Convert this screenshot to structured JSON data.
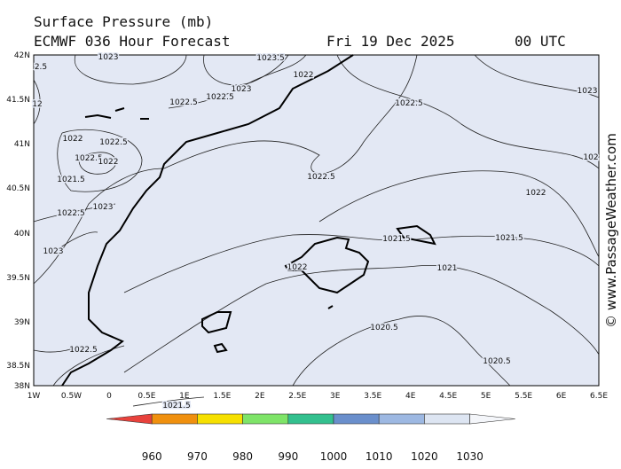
{
  "header": {
    "title": "Surface Pressure (mb)",
    "model": "ECMWF 036 Hour Forecast",
    "date": "Fri 19 Dec 2025",
    "time": "00 UTC"
  },
  "map": {
    "lat_labels": [
      "42N",
      "41.5N",
      "41N",
      "40.5N",
      "40N",
      "39.5N",
      "39N",
      "38.5N",
      "38N"
    ],
    "lon_labels": [
      "1W",
      "0.5W",
      "0",
      "0.5E",
      "1E",
      "1.5E",
      "2E",
      "2.5E",
      "3E",
      "3.5E",
      "4E",
      "4.5E",
      "5E",
      "5.5E",
      "6E",
      "6.5E"
    ],
    "contour_labels": [
      "1023",
      "1023.5",
      "1022",
      "1023",
      "1022.5",
      "1022.5",
      "1022.5",
      "1023",
      "1022",
      "1022.5",
      "1022.5",
      "1022",
      "1021.5",
      "1022.5",
      "1022",
      "102",
      "1023",
      "1022.5",
      "1023",
      "1021.5",
      "1021.5",
      "1022",
      "1021",
      "1020.5",
      "1022.5",
      "1020.5",
      "1021.5",
      "2.5",
      "12"
    ],
    "background": "#e3e8f4"
  },
  "legend": {
    "levels": [
      960,
      970,
      980,
      990,
      1000,
      1010,
      1020,
      1030
    ],
    "colors": [
      "#e8423c",
      "#f0900e",
      "#f6e000",
      "#7ee468",
      "#33c08e",
      "#6a8fcc",
      "#9db8e2",
      "#dde5f2",
      "#f4f6fa"
    ]
  },
  "watermark": "© www.PassageWeather.com"
}
